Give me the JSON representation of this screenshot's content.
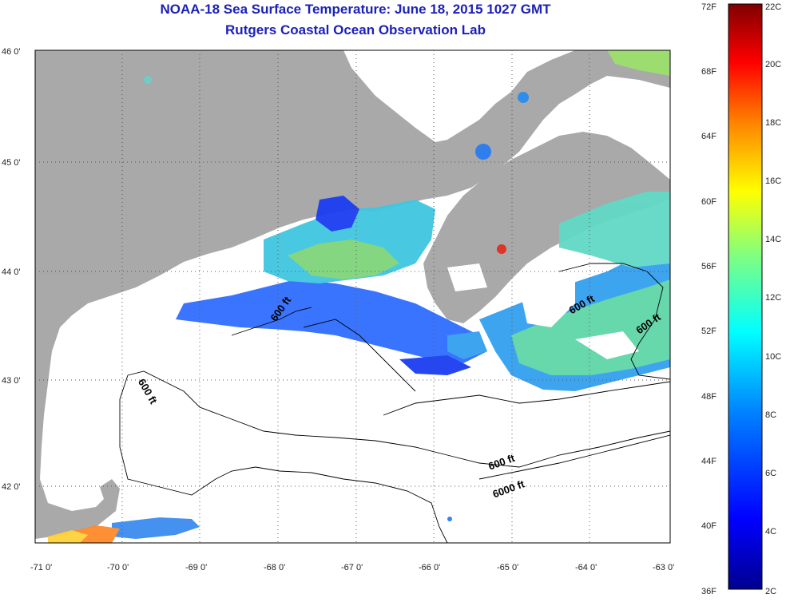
{
  "title": {
    "line1": "NOAA-18 Sea Surface Temperature:  June 18, 2015 1027 GMT",
    "line2": "Rutgers Coastal Ocean Observation Lab"
  },
  "colors": {
    "title": "#1c21b8",
    "land": "#a9a9a9",
    "water_nodata": "#ffffff"
  },
  "axes": {
    "lon_labels": [
      "-71 0'",
      "-70 0'",
      "-69 0'",
      "-68 0'",
      "-67 0'",
      "-66 0'",
      "-65 0'",
      "-64 0'",
      "-63 0'"
    ],
    "lat_labels": [
      "46 0'",
      "45 0'",
      "44 0'",
      "43 0'",
      "42 0'"
    ]
  },
  "contour_labels": [
    "600 ft",
    "600 ft",
    "600 ft",
    "600 ft",
    "600 ft",
    "6000 ft"
  ],
  "colorbar": {
    "fahrenheit": [
      "72F",
      "68F",
      "64F",
      "60F",
      "56F",
      "52F",
      "48F",
      "44F",
      "40F",
      "36F"
    ],
    "celsius": [
      "22C",
      "20C",
      "18C",
      "16C",
      "14C",
      "12C",
      "10C",
      "8C",
      "6C",
      "4C",
      "2C"
    ],
    "gradient": [
      "#00008f",
      "#0000ff",
      "#0080ff",
      "#00ffff",
      "#80ff80",
      "#ffff00",
      "#ff8000",
      "#ff0000",
      "#800000"
    ]
  }
}
